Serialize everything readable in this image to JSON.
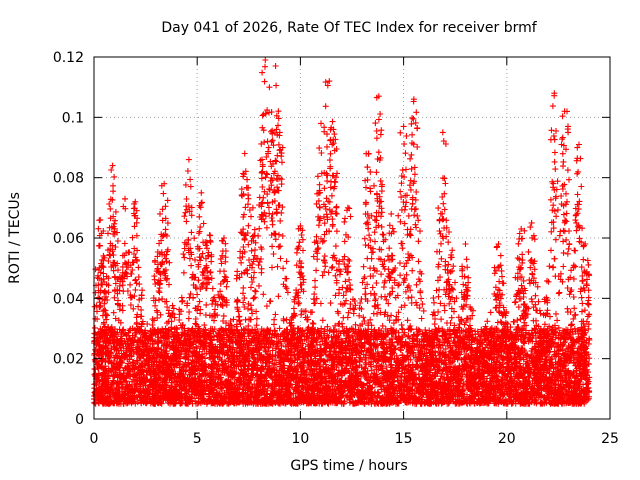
{
  "chart_data": {
    "type": "scatter",
    "title": "Day 041 of 2026, Rate Of TEC Index for receiver brmf",
    "xlabel": "GPS time / hours",
    "ylabel": "ROTI / TECUs",
    "xlim": [
      0,
      25
    ],
    "ylim": [
      0,
      0.12
    ],
    "x_ticks": [
      0,
      5,
      10,
      15,
      20,
      25
    ],
    "y_ticks": [
      0,
      0.02,
      0.04,
      0.06,
      0.08,
      0.1,
      0.12
    ],
    "x_tick_labels": [
      "0",
      "5",
      "10",
      "15",
      "20",
      "25"
    ],
    "y_tick_labels": [
      "0",
      "0.02",
      "0.04",
      "0.06",
      "0.08",
      "0.1",
      "0.12"
    ],
    "grid": true,
    "marker": "+",
    "marker_color": "#ff0000",
    "series": [
      {
        "name": "ROTI",
        "x_range": [
          0,
          24
        ],
        "baseline_band": [
          0.005,
          0.03
        ],
        "note": "thousands of '+' samples; dense band between about 0.005 and 0.03 TECU/min with bursts",
        "peaks": [
          {
            "x": 0.3,
            "y": 0.066
          },
          {
            "x": 0.9,
            "y": 0.084
          },
          {
            "x": 1.5,
            "y": 0.073
          },
          {
            "x": 2.0,
            "y": 0.072
          },
          {
            "x": 3.2,
            "y": 0.068
          },
          {
            "x": 3.4,
            "y": 0.078
          },
          {
            "x": 4.6,
            "y": 0.086
          },
          {
            "x": 5.2,
            "y": 0.075
          },
          {
            "x": 5.6,
            "y": 0.061
          },
          {
            "x": 6.3,
            "y": 0.06
          },
          {
            "x": 7.3,
            "y": 0.088
          },
          {
            "x": 7.7,
            "y": 0.07
          },
          {
            "x": 8.3,
            "y": 0.119
          },
          {
            "x": 8.5,
            "y": 0.11
          },
          {
            "x": 8.8,
            "y": 0.117
          },
          {
            "x": 9.0,
            "y": 0.095
          },
          {
            "x": 10.0,
            "y": 0.064
          },
          {
            "x": 11.0,
            "y": 0.098
          },
          {
            "x": 11.4,
            "y": 0.112
          },
          {
            "x": 11.6,
            "y": 0.096
          },
          {
            "x": 12.3,
            "y": 0.07
          },
          {
            "x": 13.3,
            "y": 0.088
          },
          {
            "x": 13.8,
            "y": 0.107
          },
          {
            "x": 14.4,
            "y": 0.068
          },
          {
            "x": 15.0,
            "y": 0.097
          },
          {
            "x": 15.5,
            "y": 0.106
          },
          {
            "x": 16.9,
            "y": 0.095
          },
          {
            "x": 17.2,
            "y": 0.062
          },
          {
            "x": 18.0,
            "y": 0.058
          },
          {
            "x": 19.6,
            "y": 0.058
          },
          {
            "x": 20.7,
            "y": 0.063
          },
          {
            "x": 21.2,
            "y": 0.065
          },
          {
            "x": 22.3,
            "y": 0.108
          },
          {
            "x": 22.8,
            "y": 0.102
          },
          {
            "x": 23.5,
            "y": 0.091
          },
          {
            "x": 23.8,
            "y": 0.058
          }
        ]
      }
    ]
  }
}
